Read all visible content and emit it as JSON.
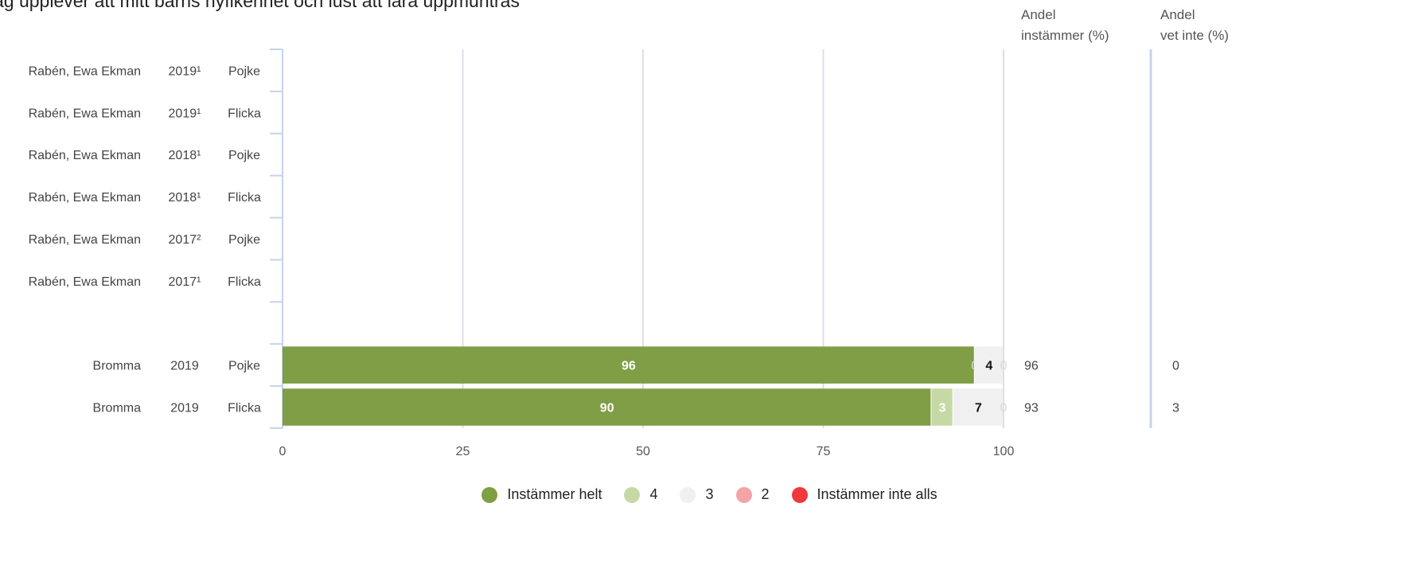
{
  "title": "ag upplever att mitt barns nyfikenhet och lust att lära uppmuntras",
  "headers": {
    "share_agree": [
      "Andel",
      "instämmer (%)"
    ],
    "share_dont_know": [
      "Andel",
      "vet inte (%)"
    ]
  },
  "chart_data": {
    "type": "bar",
    "orientation": "horizontal",
    "stacked": true,
    "title": "ag upplever att mitt barns nyfikenhet och lust att lära uppmuntras",
    "xlim": [
      0,
      100
    ],
    "x_ticks": [
      0,
      25,
      50,
      75,
      100
    ],
    "grid": true,
    "legend_position": "bottom",
    "series": [
      {
        "name": "Instämmer helt",
        "color": "#7f9e45"
      },
      {
        "name": "4",
        "color": "#c6d9a4"
      },
      {
        "name": "3",
        "color": "#f0f0f0"
      },
      {
        "name": "2",
        "color": "#f4a3a6"
      },
      {
        "name": "Instämmer inte alls",
        "color": "#f0373c"
      }
    ],
    "rows": [
      {
        "school": "Rabén, Ewa Ekman",
        "year": "2019¹",
        "gender": "Pojke",
        "values": null,
        "share_agree": null,
        "share_dont_know": null
      },
      {
        "school": "Rabén, Ewa Ekman",
        "year": "2019¹",
        "gender": "Flicka",
        "values": null,
        "share_agree": null,
        "share_dont_know": null
      },
      {
        "school": "Rabén, Ewa Ekman",
        "year": "2018¹",
        "gender": "Pojke",
        "values": null,
        "share_agree": null,
        "share_dont_know": null
      },
      {
        "school": "Rabén, Ewa Ekman",
        "year": "2018¹",
        "gender": "Flicka",
        "values": null,
        "share_agree": null,
        "share_dont_know": null
      },
      {
        "school": "Rabén, Ewa Ekman",
        "year": "2017²",
        "gender": "Pojke",
        "values": null,
        "share_agree": null,
        "share_dont_know": null
      },
      {
        "school": "Rabén, Ewa Ekman",
        "year": "2017¹",
        "gender": "Flicka",
        "values": null,
        "share_agree": null,
        "share_dont_know": null
      },
      {
        "school": "",
        "year": "",
        "gender": "",
        "values": null,
        "share_agree": null,
        "share_dont_know": null
      },
      {
        "school": "Bromma",
        "year": "2019",
        "gender": "Pojke",
        "values": [
          96,
          0,
          4,
          0,
          0
        ],
        "share_agree": "96",
        "share_dont_know": "0"
      },
      {
        "school": "Bromma",
        "year": "2019",
        "gender": "Flicka",
        "values": [
          90,
          3,
          7,
          0,
          0
        ],
        "share_agree": "93",
        "share_dont_know": "3"
      }
    ]
  }
}
